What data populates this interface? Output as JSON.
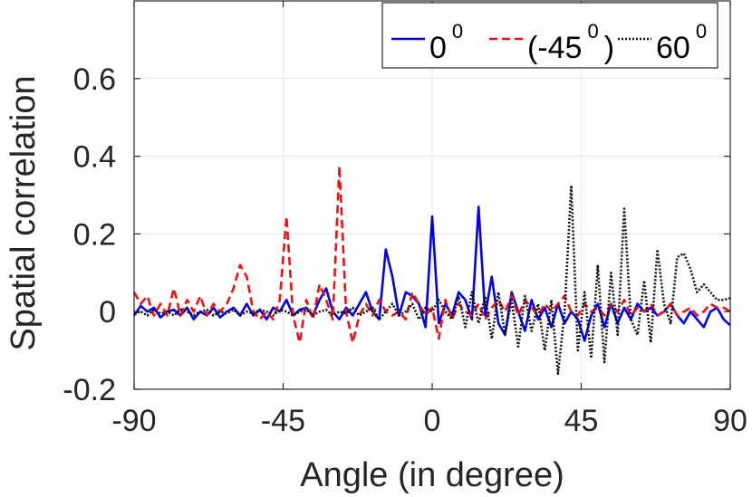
{
  "chart_data": {
    "type": "line",
    "xlabel": "Angle (in degree)",
    "ylabel": "Spatial correlation",
    "xlim": [
      -90,
      90
    ],
    "ylim": [
      -0.2,
      0.8
    ],
    "xticks": [
      -90,
      -45,
      0,
      45,
      90
    ],
    "xtick_labels": [
      "-90",
      "-45",
      "0",
      "45",
      "90"
    ],
    "yticks": [
      -0.2,
      0,
      0.2,
      0.4,
      0.6
    ],
    "ytick_labels": [
      "-0.2",
      "0",
      "0.2",
      "0.4",
      "0.6"
    ],
    "grid": true,
    "legend_position": "top-right",
    "series": [
      {
        "legend_base": "0",
        "legend_sup": "0",
        "color": "#0000ee",
        "dash": "solid",
        "x": [
          -90,
          -88,
          -86,
          -84,
          -82,
          -80,
          -78,
          -76,
          -74,
          -72,
          -70,
          -68,
          -66,
          -64,
          -62,
          -60,
          -58,
          -56,
          -54,
          -52,
          -50,
          -48,
          -46,
          -44,
          -42,
          -40,
          -38,
          -36,
          -34,
          -32,
          -30,
          -28,
          -26,
          -24,
          -22,
          -20,
          -18,
          -16,
          -14,
          -12,
          -10,
          -8,
          -6,
          -4,
          -2,
          0,
          2,
          4,
          6,
          8,
          10,
          12,
          14,
          16,
          18,
          20,
          22,
          24,
          26,
          28,
          30,
          32,
          34,
          36,
          38,
          40,
          42,
          44,
          46,
          48,
          50,
          52,
          54,
          56,
          58,
          60,
          62,
          64,
          66,
          68,
          70,
          72,
          74,
          76,
          78,
          80,
          82,
          84,
          86,
          88,
          90
        ],
        "y": [
          -0.01,
          0.015,
          0.0,
          0.01,
          -0.015,
          0.0,
          0.005,
          -0.01,
          0.01,
          -0.02,
          0.0,
          -0.01,
          0.01,
          -0.015,
          0.0,
          0.01,
          -0.01,
          0.02,
          -0.01,
          0.005,
          -0.02,
          0.01,
          0.0,
          0.03,
          -0.01,
          0.005,
          0.01,
          -0.01,
          0.03,
          0.06,
          0.0,
          -0.02,
          0.01,
          -0.01,
          0.02,
          0.05,
          0.0,
          -0.02,
          0.16,
          0.09,
          -0.01,
          0.05,
          0.04,
          0.02,
          -0.04,
          0.245,
          -0.03,
          0.02,
          -0.01,
          0.05,
          0.03,
          -0.02,
          0.27,
          -0.01,
          0.09,
          -0.03,
          -0.06,
          0.05,
          0.0,
          -0.05,
          0.03,
          -0.02,
          0.01,
          -0.04,
          0.02,
          -0.03,
          0.0,
          -0.02,
          -0.075,
          -0.01,
          0.02,
          -0.04,
          0.02,
          -0.03,
          0.01,
          -0.02,
          0.02,
          0.0,
          0.01,
          -0.01,
          0.0,
          0.02,
          -0.01,
          -0.03,
          0.0,
          -0.02,
          -0.04,
          0.0,
          0.01,
          -0.02,
          -0.035
        ]
      },
      {
        "legend_base": "(-45",
        "legend_sup": "0",
        "legend_suffix": ")",
        "color": "#ee1111",
        "dash": "dashed",
        "x": [
          -90,
          -88,
          -86,
          -84,
          -82,
          -80,
          -78,
          -76,
          -74,
          -72,
          -70,
          -68,
          -66,
          -64,
          -62,
          -60,
          -58,
          -56,
          -54,
          -52,
          -50,
          -48,
          -46,
          -44,
          -42,
          -40,
          -38,
          -36,
          -34,
          -32,
          -30,
          -28,
          -26,
          -24,
          -22,
          -20,
          -18,
          -16,
          -14,
          -12,
          -10,
          -8,
          -6,
          -4,
          -2,
          0,
          2,
          4,
          6,
          8,
          10,
          12,
          14,
          16,
          18,
          20,
          22,
          24,
          26,
          28,
          30,
          32,
          34,
          36,
          38,
          40,
          42,
          44,
          46,
          48,
          50,
          52,
          54,
          56,
          58,
          60,
          62,
          64,
          66,
          68,
          70,
          72,
          74,
          76,
          78,
          80,
          82,
          84,
          86,
          88,
          90
        ],
        "y": [
          0.05,
          0.02,
          0.04,
          -0.01,
          0.02,
          -0.01,
          0.06,
          -0.01,
          0.03,
          0.0,
          0.04,
          -0.01,
          0.02,
          0.0,
          0.02,
          0.06,
          0.12,
          0.09,
          0.0,
          -0.02,
          0.0,
          -0.02,
          0.03,
          0.245,
          -0.01,
          -0.08,
          0.03,
          -0.02,
          0.07,
          0.03,
          -0.02,
          0.375,
          0.0,
          -0.08,
          -0.01,
          0.02,
          -0.01,
          0.03,
          0.0,
          -0.01,
          0.0,
          -0.02,
          0.05,
          0.02,
          -0.01,
          0.01,
          -0.07,
          0.03,
          -0.02,
          0.02,
          0.0,
          -0.01,
          0.02,
          -0.02,
          0.01,
          0.03,
          0.0,
          0.04,
          -0.01,
          0.03,
          0.01,
          -0.01,
          0.02,
          0.0,
          0.02,
          0.04,
          0.0,
          -0.01,
          0.02,
          0.0,
          0.01,
          -0.01,
          0.02,
          0.0,
          0.03,
          -0.01,
          0.01,
          0.0,
          0.02,
          -0.01,
          0.0,
          0.02,
          -0.01,
          0.0,
          0.01,
          -0.01,
          0.0,
          0.02,
          0.01,
          0.01,
          0.0
        ]
      },
      {
        "legend_base": "60",
        "legend_sup": "0",
        "color": "#111111",
        "dash": "dotted",
        "x": [
          -90,
          -88,
          -86,
          -84,
          -82,
          -80,
          -78,
          -76,
          -74,
          -72,
          -70,
          -68,
          -66,
          -64,
          -62,
          -60,
          -58,
          -56,
          -54,
          -52,
          -50,
          -48,
          -46,
          -44,
          -42,
          -40,
          -38,
          -36,
          -34,
          -32,
          -30,
          -28,
          -26,
          -24,
          -22,
          -20,
          -18,
          -16,
          -14,
          -12,
          -10,
          -8,
          -6,
          -4,
          -2,
          0,
          2,
          4,
          6,
          8,
          10,
          12,
          14,
          16,
          18,
          20,
          22,
          24,
          26,
          28,
          30,
          32,
          34,
          36,
          38,
          40,
          42,
          44,
          46,
          48,
          50,
          52,
          54,
          56,
          58,
          60,
          62,
          64,
          66,
          68,
          70,
          72,
          74,
          76,
          78,
          80,
          82,
          84,
          86,
          88,
          90
        ],
        "y": [
          -0.005,
          0.0,
          -0.01,
          0.005,
          -0.005,
          0.0,
          -0.01,
          0.005,
          0.0,
          -0.01,
          0.0,
          0.005,
          -0.01,
          0.0,
          -0.005,
          0.005,
          -0.01,
          0.0,
          -0.005,
          0.005,
          0.0,
          -0.01,
          0.005,
          0.0,
          -0.01,
          0.0,
          0.005,
          -0.01,
          0.0,
          0.005,
          -0.01,
          0.0,
          -0.005,
          0.01,
          -0.01,
          0.0,
          0.01,
          -0.02,
          0.0,
          0.02,
          -0.01,
          0.0,
          0.02,
          -0.02,
          0.01,
          0.0,
          0.03,
          0.0,
          -0.02,
          0.04,
          -0.04,
          0.05,
          -0.03,
          0.04,
          -0.07,
          0.05,
          -0.06,
          0.03,
          -0.09,
          0.04,
          -0.05,
          0.02,
          -0.1,
          0.03,
          -0.16,
          0.0,
          0.325,
          -0.1,
          0.05,
          -0.12,
          0.12,
          -0.13,
          0.1,
          -0.06,
          0.265,
          -0.02,
          -0.06,
          0.08,
          -0.08,
          0.16,
          0.02,
          -0.03,
          0.14,
          0.15,
          0.11,
          0.05,
          0.07,
          0.05,
          0.03,
          0.03,
          0.035
        ]
      }
    ]
  }
}
